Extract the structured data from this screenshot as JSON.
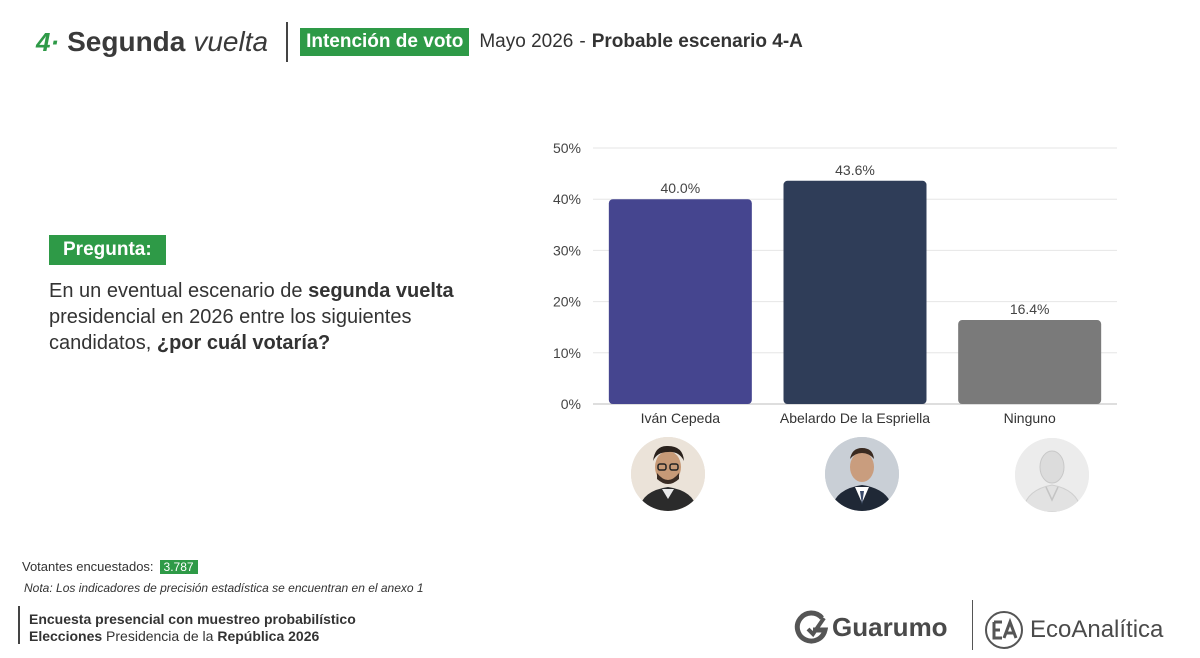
{
  "header": {
    "number": "4·",
    "title": "Segunda",
    "title_italic": "vuelta",
    "tag": "Intención de voto",
    "date": "Mayo  2026",
    "dash": "-",
    "scenario": "Probable escenario 4-A"
  },
  "question": {
    "label": "Pregunta:",
    "text_1": "En un eventual escenario de ",
    "text_bold_1": "segunda vuelta",
    "text_2": " presidencial en 2026 entre los siguientes candidatos, ",
    "text_bold_2": "¿por cuál votaría?"
  },
  "chart_data": {
    "type": "bar",
    "categories": [
      "Iván Cepeda",
      "Abelardo De la Espriella",
      "Ninguno"
    ],
    "values": [
      40.0,
      43.6,
      16.4
    ],
    "value_labels": [
      "40.0%",
      "43.6%",
      "16.4%"
    ],
    "colors": [
      "#45458f",
      "#2f3d58",
      "#7a7a7a"
    ],
    "ylim": [
      0,
      50
    ],
    "y_ticks": [
      "0%",
      "10%",
      "20%",
      "30%",
      "40%",
      "50%"
    ],
    "y_tick_values": [
      0,
      10,
      20,
      30,
      40,
      50
    ],
    "grid": true,
    "title": "",
    "xlabel": "",
    "ylabel": ""
  },
  "avatars": [
    {
      "icon": "candidate-photo-icon",
      "candidate": "Iván Cepeda"
    },
    {
      "icon": "candidate-photo-icon",
      "candidate": "Abelardo De la Espriella"
    },
    {
      "icon": "mannequin-icon",
      "candidate": "Ninguno"
    }
  ],
  "footer": {
    "votantes_label": "Votantes encuestados:",
    "votantes_value": "3.787",
    "nota": "Nota: Los indicadores de precisión estadística se encuentran en el anexo 1",
    "line1": "Encuesta presencial con muestreo probabilístico",
    "line2_bold_1": "Elecciones",
    "line2_regular": " Presidencia de la ",
    "line2_bold_2": "República 2026"
  },
  "logos": {
    "guarumo": "Guarumo",
    "eco": "EcoAnalítica"
  },
  "colors": {
    "accent": "#2e9a47"
  }
}
